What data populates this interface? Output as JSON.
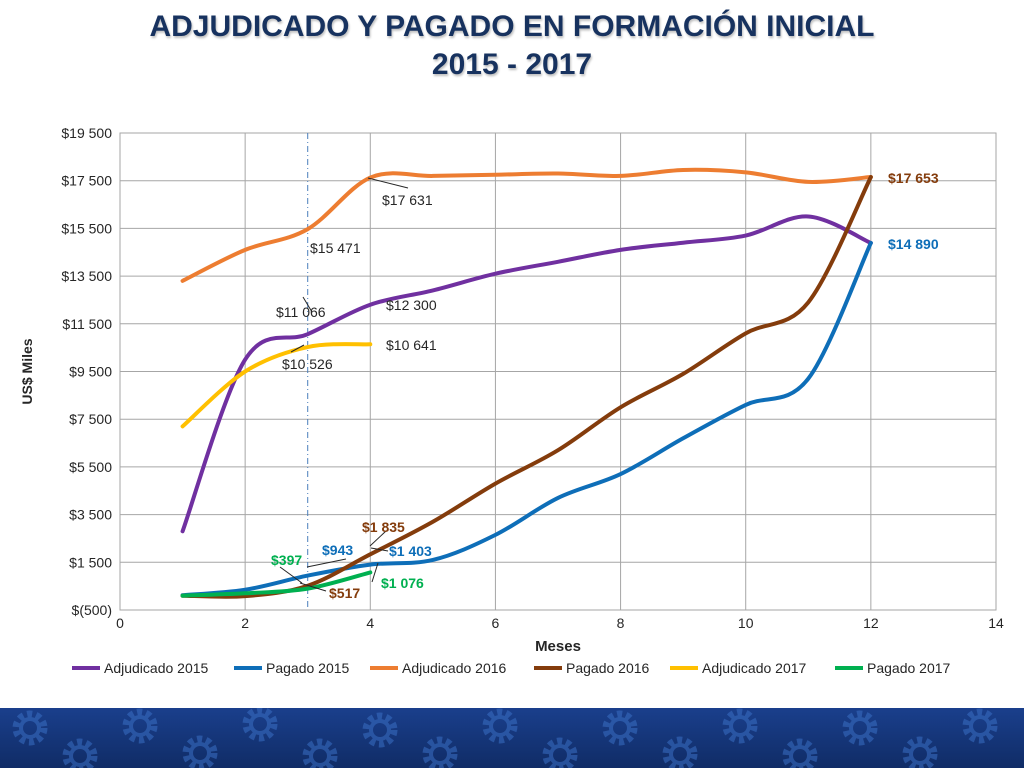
{
  "page": {
    "title_line1": "ADJUDICADO Y PAGADO EN FORMACIÓN INICIAL",
    "title_line2": "2015 - 2017"
  },
  "colors": {
    "title": "#17325f",
    "footer": "#1a3f8c"
  },
  "chart_data": {
    "type": "line",
    "xlabel": "Meses",
    "ylabel": "US$ Miles",
    "xlim": [
      0,
      14
    ],
    "ylim": [
      -500,
      19500
    ],
    "x_ticks": [
      0,
      2,
      4,
      6,
      8,
      10,
      12,
      14
    ],
    "x_tick_labels": [
      "0",
      "2",
      "4",
      "6",
      "8",
      "10",
      "12",
      "14"
    ],
    "y_ticks": [
      -500,
      1500,
      3500,
      5500,
      7500,
      9500,
      11500,
      13500,
      15500,
      17500,
      19500
    ],
    "y_tick_labels": [
      "$(500)",
      "$1 500",
      "$3 500",
      "$5 500",
      "$7 500",
      "$9 500",
      "$11 500",
      "$13 500",
      "$15 500",
      "$17 500",
      "$19 500"
    ],
    "grid": true,
    "legend_position": "bottom",
    "reference_line_x": 3,
    "series": [
      {
        "name": "Adjudicado 2015",
        "color": "#7030a0",
        "x": [
          1,
          2,
          3,
          4,
          5,
          6,
          7,
          8,
          9,
          10,
          11,
          12
        ],
        "y": [
          2800,
          10000,
          11066,
          12300,
          12900,
          13600,
          14100,
          14600,
          14900,
          15200,
          16000,
          14890
        ]
      },
      {
        "name": "Pagado 2015",
        "color": "#0e6eb8",
        "x": [
          1,
          2,
          3,
          4,
          5,
          6,
          7,
          8,
          9,
          10,
          11,
          12
        ],
        "y": [
          120,
          350,
          943,
          1403,
          1600,
          2650,
          4200,
          5200,
          6700,
          8100,
          9200,
          14890
        ]
      },
      {
        "name": "Adjudicado 2016",
        "color": "#ed7d31",
        "x": [
          1,
          2,
          3,
          4,
          5,
          6,
          7,
          8,
          9,
          10,
          11,
          12
        ],
        "y": [
          13300,
          14600,
          15471,
          17631,
          17700,
          17750,
          17800,
          17700,
          17950,
          17850,
          17450,
          17653
        ]
      },
      {
        "name": "Pagado 2016",
        "color": "#843c0c",
        "x": [
          1,
          2,
          3,
          4,
          5,
          6,
          7,
          8,
          9,
          10,
          11,
          12
        ],
        "y": [
          100,
          80,
          517,
          1835,
          3200,
          4800,
          6200,
          8000,
          9400,
          11100,
          12400,
          17653
        ]
      },
      {
        "name": "Adjudicado 2017",
        "color": "#ffc000",
        "x": [
          1,
          2,
          3,
          4
        ],
        "y": [
          7200,
          9500,
          10526,
          10641
        ]
      },
      {
        "name": "Pagado 2017",
        "color": "#00b050",
        "x": [
          1,
          2,
          3,
          4
        ],
        "y": [
          100,
          200,
          397,
          1076
        ]
      }
    ],
    "annotations": [
      {
        "text": "$17 631",
        "x": 4,
        "y": 17631,
        "color": "#262626"
      },
      {
        "text": "$15 471",
        "x": 3,
        "y": 15471,
        "color": "#262626"
      },
      {
        "text": "$11 066",
        "x": 3,
        "y": 11066,
        "color": "#262626"
      },
      {
        "text": "$12 300",
        "x": 4,
        "y": 12300,
        "color": "#262626"
      },
      {
        "text": "$10 641",
        "x": 4,
        "y": 10641,
        "color": "#262626"
      },
      {
        "text": "$10 526",
        "x": 3,
        "y": 10526,
        "color": "#262626"
      },
      {
        "text": "$17 653",
        "x": 12,
        "y": 17653,
        "color": "#843c0c"
      },
      {
        "text": "$14 890",
        "x": 12,
        "y": 14890,
        "color": "#0e6eb8"
      },
      {
        "text": "$1 835",
        "x": 4,
        "y": 1835,
        "color": "#843c0c"
      },
      {
        "text": "$943",
        "x": 3,
        "y": 943,
        "color": "#0e6eb8"
      },
      {
        "text": "$1 403",
        "x": 4,
        "y": 1403,
        "color": "#0e6eb8"
      },
      {
        "text": "$397",
        "x": 3,
        "y": 397,
        "color": "#00b050"
      },
      {
        "text": "$517",
        "x": 3,
        "y": 517,
        "color": "#843c0c"
      },
      {
        "text": "$1 076",
        "x": 4,
        "y": 1076,
        "color": "#00b050"
      }
    ]
  }
}
